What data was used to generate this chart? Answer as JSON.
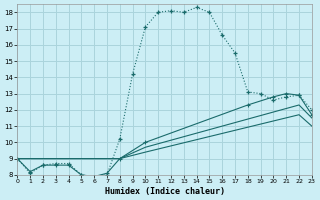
{
  "xlabel": "Humidex (Indice chaleur)",
  "bg_color": "#cceef5",
  "grid_color": "#aad4dc",
  "line_color": "#1a6b6b",
  "xmin": 0,
  "xmax": 23,
  "ymin": 8,
  "ymax": 18.5,
  "xtick_labels": [
    "0",
    "1",
    "2",
    "3",
    "4",
    "5",
    "6",
    "7",
    "8",
    "9",
    "10",
    "11",
    "12",
    "13",
    "14",
    "15",
    "16",
    "17",
    "18",
    "19",
    "20",
    "21",
    "22",
    "23"
  ],
  "yticks": [
    8,
    9,
    10,
    11,
    12,
    13,
    14,
    15,
    16,
    17,
    18
  ],
  "curve1_x": [
    0,
    1,
    2,
    3,
    4,
    5,
    6,
    7,
    8,
    9,
    10,
    11,
    12,
    13,
    14,
    15,
    16,
    17,
    18,
    19,
    20,
    21,
    22,
    23
  ],
  "curve1_y": [
    9.0,
    8.1,
    8.6,
    8.7,
    8.7,
    8.0,
    7.9,
    8.0,
    10.2,
    14.2,
    17.1,
    18.0,
    18.1,
    18.0,
    18.3,
    18.0,
    16.6,
    15.5,
    13.1,
    13.0,
    12.6,
    12.8,
    12.9,
    12.0
  ],
  "curve2_x": [
    0,
    1,
    2,
    3,
    4,
    5,
    6,
    7,
    8,
    10,
    18,
    20,
    21,
    22,
    23
  ],
  "curve2_y": [
    9.0,
    8.2,
    8.6,
    8.6,
    8.6,
    8.0,
    7.9,
    8.1,
    9.0,
    10.0,
    12.3,
    12.8,
    13.0,
    12.9,
    11.7
  ],
  "curve3_x": [
    0,
    8,
    10,
    22,
    23
  ],
  "curve3_y": [
    9.0,
    9.0,
    9.7,
    12.3,
    11.5
  ],
  "curve4_x": [
    0,
    8,
    10,
    22,
    23
  ],
  "curve4_y": [
    9.0,
    9.0,
    9.4,
    11.7,
    11.0
  ]
}
